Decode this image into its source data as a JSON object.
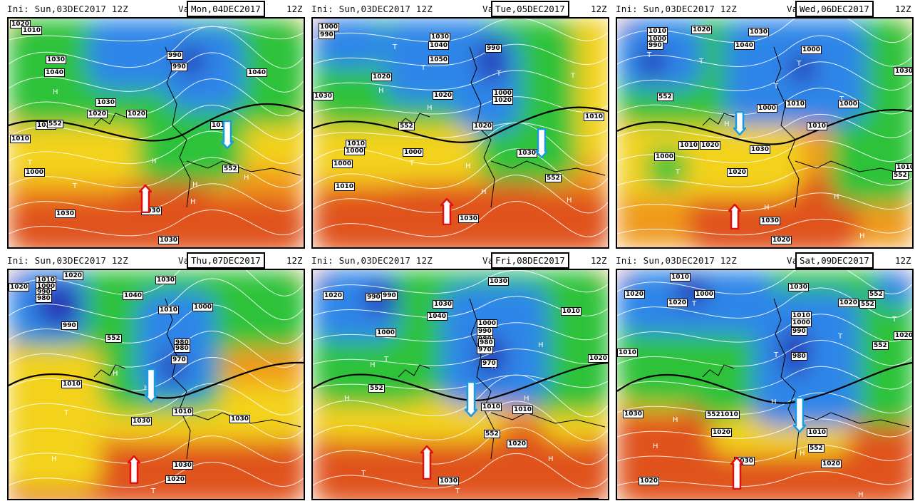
{
  "panels": [
    {
      "ini": "Ini: Sun,03DEC2017 12Z",
      "val_label": "Val",
      "valid": "Mon,04DEC2017",
      "z": "12Z",
      "labels": [
        [
          "1020",
          2,
          2
        ],
        [
          "1010",
          18,
          11
        ],
        [
          "1030",
          52,
          52
        ],
        [
          "1040",
          50,
          70
        ],
        [
          "1020",
          38,
          144
        ],
        [
          "552",
          54,
          142
        ],
        [
          "1010",
          2,
          163
        ],
        [
          "1000",
          22,
          210
        ],
        [
          "1030",
          122,
          112
        ],
        [
          "1030",
          65,
          268
        ],
        [
          "1020",
          110,
          128
        ],
        [
          "1030",
          186,
          264
        ],
        [
          "1030",
          210,
          305
        ],
        [
          "990",
          222,
          46
        ],
        [
          "990",
          228,
          62
        ],
        [
          "1010",
          283,
          144
        ],
        [
          "552",
          300,
          205
        ],
        [
          "1040",
          334,
          70
        ],
        [
          "1020",
          165,
          128
        ]
      ],
      "highs": [
        [
          "H",
          62,
          98
        ],
        [
          "H",
          200,
          195
        ],
        [
          "H",
          255,
          252
        ],
        [
          "T",
          27,
          197
        ],
        [
          "T",
          90,
          230
        ],
        [
          "H",
          258,
          228
        ],
        [
          "H",
          330,
          218
        ]
      ],
      "up": [
        [
          192,
          233,
          40
        ]
      ],
      "down": [
        [
          307,
          143,
          40
        ]
      ]
    },
    {
      "ini": "Ini: Sun,03DEC2017 12Z",
      "val_label": "Val",
      "valid": "Tue,05DEC2017",
      "z": "12Z",
      "labels": [
        [
          "1000",
          8,
          6
        ],
        [
          "990",
          8,
          17
        ],
        [
          "1030",
          164,
          20
        ],
        [
          "1040",
          162,
          32
        ],
        [
          "1050",
          162,
          52
        ],
        [
          "1020",
          82,
          76
        ],
        [
          "1030",
          0,
          103
        ],
        [
          "990",
          242,
          36
        ],
        [
          "1000",
          252,
          99
        ],
        [
          "1020",
          252,
          109
        ],
        [
          "1020",
          168,
          102
        ],
        [
          "552",
          120,
          145
        ],
        [
          "1020",
          224,
          145
        ],
        [
          "1010",
          46,
          170
        ],
        [
          "1000",
          44,
          180
        ],
        [
          "1000",
          27,
          198
        ],
        [
          "1000",
          126,
          182
        ],
        [
          "1030",
          286,
          183
        ],
        [
          "552",
          326,
          218
        ],
        [
          "1010",
          30,
          230
        ],
        [
          "1010",
          380,
          132
        ],
        [
          "1030",
          204,
          275
        ]
      ],
      "highs": [
        [
          "T",
          112,
          35
        ],
        [
          "T",
          152,
          64
        ],
        [
          "H",
          92,
          96
        ],
        [
          "H",
          160,
          120
        ],
        [
          "T",
          258,
          72
        ],
        [
          "T",
          362,
          75
        ],
        [
          "T",
          136,
          198
        ],
        [
          "H",
          214,
          202
        ],
        [
          "H",
          236,
          238
        ],
        [
          "H",
          356,
          250
        ]
      ],
      "up": [
        [
          188,
          252,
          38
        ]
      ],
      "down": [
        [
          321,
          154,
          42
        ]
      ]
    },
    {
      "ini": "Ini: Sun,03DEC2017 12Z",
      "val_label": "Val",
      "valid": "Wed,06DEC2017",
      "z": "12Z",
      "labels": [
        [
          "1010",
          42,
          12
        ],
        [
          "1000",
          42,
          23
        ],
        [
          "990",
          42,
          32
        ],
        [
          "1020",
          104,
          10
        ],
        [
          "1030",
          184,
          13
        ],
        [
          "1040",
          164,
          32
        ],
        [
          "1000",
          258,
          38
        ],
        [
          "1030",
          388,
          68
        ],
        [
          "552",
          56,
          104
        ],
        [
          "1000",
          196,
          120
        ],
        [
          "1010",
          236,
          114
        ],
        [
          "1000",
          310,
          114
        ],
        [
          "1010",
          86,
          172
        ],
        [
          "1020",
          116,
          172
        ],
        [
          "1000",
          52,
          188
        ],
        [
          "1030",
          186,
          178
        ],
        [
          "1020",
          154,
          210
        ],
        [
          "1010",
          390,
          203
        ],
        [
          "552",
          386,
          214
        ],
        [
          "1030",
          200,
          278
        ],
        [
          "1020",
          216,
          305
        ],
        [
          "1010",
          266,
          145
        ]
      ],
      "highs": [
        [
          "T",
          42,
          46
        ],
        [
          "T",
          115,
          55
        ],
        [
          "T",
          252,
          58
        ],
        [
          "T",
          220,
          90
        ],
        [
          "T",
          312,
          108
        ],
        [
          "H",
          150,
          143
        ],
        [
          "T",
          82,
          210
        ],
        [
          "H",
          304,
          245
        ],
        [
          "H",
          206,
          260
        ],
        [
          "H",
          340,
          300
        ]
      ],
      "up": [
        [
          165,
          260,
          36
        ]
      ],
      "down": [
        [
          172,
          130,
          34
        ]
      ]
    },
    {
      "ini": "Ini: Sun,03DEC2017 12Z",
      "val_label": "Val",
      "valid": "Thu,07DEC2017",
      "z": "12Z",
      "labels": [
        [
          "1010",
          38,
          8
        ],
        [
          "1000",
          38,
          17
        ],
        [
          "990",
          38,
          25
        ],
        [
          "980",
          38,
          34
        ],
        [
          "1020",
          0,
          18
        ],
        [
          "1020",
          76,
          2
        ],
        [
          "1030",
          206,
          8
        ],
        [
          "1040",
          160,
          30
        ],
        [
          "1010",
          210,
          50
        ],
        [
          "1000",
          258,
          46
        ],
        [
          "990",
          74,
          72
        ],
        [
          "552",
          136,
          90
        ],
        [
          "980",
          232,
          96
        ],
        [
          "980",
          232,
          104
        ],
        [
          "970",
          228,
          120
        ],
        [
          "1010",
          74,
          154
        ],
        [
          "1030",
          172,
          206
        ],
        [
          "1010",
          230,
          193
        ],
        [
          "1030",
          310,
          203
        ],
        [
          "1030",
          230,
          268
        ],
        [
          "1020",
          220,
          288
        ]
      ],
      "highs": [
        [
          "H",
          146,
          140
        ],
        [
          "T",
          78,
          195
        ],
        [
          "H",
          190,
          160
        ],
        [
          "H",
          60,
          260
        ],
        [
          "T",
          200,
          305
        ],
        [
          "H",
          275,
          320
        ]
      ],
      "up": [
        [
          176,
          260,
          40
        ]
      ],
      "down": [
        [
          200,
          138,
          48
        ]
      ]
    },
    {
      "ini": "Ini: Sun,03DEC2017 12Z",
      "val_label": "Val",
      "valid": "Fri,08DEC2017",
      "z": "12Z",
      "labels": [
        [
          "1020",
          14,
          30
        ],
        [
          "990",
          74,
          32
        ],
        [
          "990",
          96,
          30
        ],
        [
          "1030",
          168,
          42
        ],
        [
          "1040",
          160,
          59
        ],
        [
          "1030",
          246,
          10
        ],
        [
          "1000",
          230,
          69
        ],
        [
          "990",
          230,
          80
        ],
        [
          "980",
          230,
          91
        ],
        [
          "970",
          230,
          106
        ],
        [
          "980",
          232,
          96
        ],
        [
          "970",
          236,
          125
        ],
        [
          "1000",
          88,
          82
        ],
        [
          "552",
          78,
          160
        ],
        [
          "1010",
          236,
          186
        ],
        [
          "1010",
          280,
          190
        ],
        [
          "552",
          240,
          224
        ],
        [
          "1020",
          272,
          238
        ],
        [
          "1020",
          386,
          118
        ],
        [
          "1030",
          176,
          290
        ],
        [
          "1020",
          372,
          320
        ],
        [
          "1010",
          348,
          52
        ]
      ],
      "highs": [
        [
          "H",
          44,
          175
        ],
        [
          "H",
          80,
          128
        ],
        [
          "T",
          100,
          120
        ],
        [
          "H",
          316,
          100
        ],
        [
          "H",
          250,
          130
        ],
        [
          "T",
          68,
          280
        ],
        [
          "T",
          200,
          305
        ],
        [
          "H",
          330,
          260
        ],
        [
          "H",
          296,
          175
        ]
      ],
      "up": [
        [
          160,
          246,
          48
        ]
      ],
      "down": [
        [
          222,
          156,
          50
        ]
      ]
    },
    {
      "ini": "Ini: Sun,03DEC2017 12Z",
      "val_label": "Val",
      "valid": "Sat,09DEC2017",
      "z": "12Z",
      "labels": [
        [
          "1010",
          74,
          4
        ],
        [
          "1020",
          10,
          28
        ],
        [
          "1020",
          70,
          40
        ],
        [
          "1000",
          108,
          28
        ],
        [
          "1030",
          240,
          18
        ],
        [
          "1020",
          310,
          40
        ],
        [
          "552",
          352,
          28
        ],
        [
          "552",
          340,
          42
        ],
        [
          "1010",
          244,
          58
        ],
        [
          "1000",
          244,
          68
        ],
        [
          "990",
          244,
          80
        ],
        [
          "1020",
          388,
          86
        ],
        [
          "552",
          358,
          100
        ],
        [
          "980",
          244,
          115
        ],
        [
          "1010",
          0,
          110
        ],
        [
          "1030",
          8,
          196
        ],
        [
          "5521010",
          124,
          197
        ],
        [
          "1020",
          132,
          222
        ],
        [
          "1010",
          266,
          222
        ],
        [
          "552",
          268,
          244
        ],
        [
          "1020",
          286,
          266
        ],
        [
          "1030",
          164,
          262
        ],
        [
          "1020",
          30,
          290
        ]
      ],
      "highs": [
        [
          "T",
          105,
          42
        ],
        [
          "T",
          386,
          64
        ],
        [
          "T",
          220,
          114
        ],
        [
          "T",
          310,
          88
        ],
        [
          "H",
          78,
          205
        ],
        [
          "H",
          50,
          242
        ],
        [
          "H",
          216,
          180
        ],
        [
          "H",
          256,
          252
        ],
        [
          "H",
          338,
          310
        ]
      ],
      "up": [
        [
          168,
          262,
          46
        ]
      ],
      "down": [
        [
          256,
          178,
          50
        ]
      ]
    }
  ]
}
